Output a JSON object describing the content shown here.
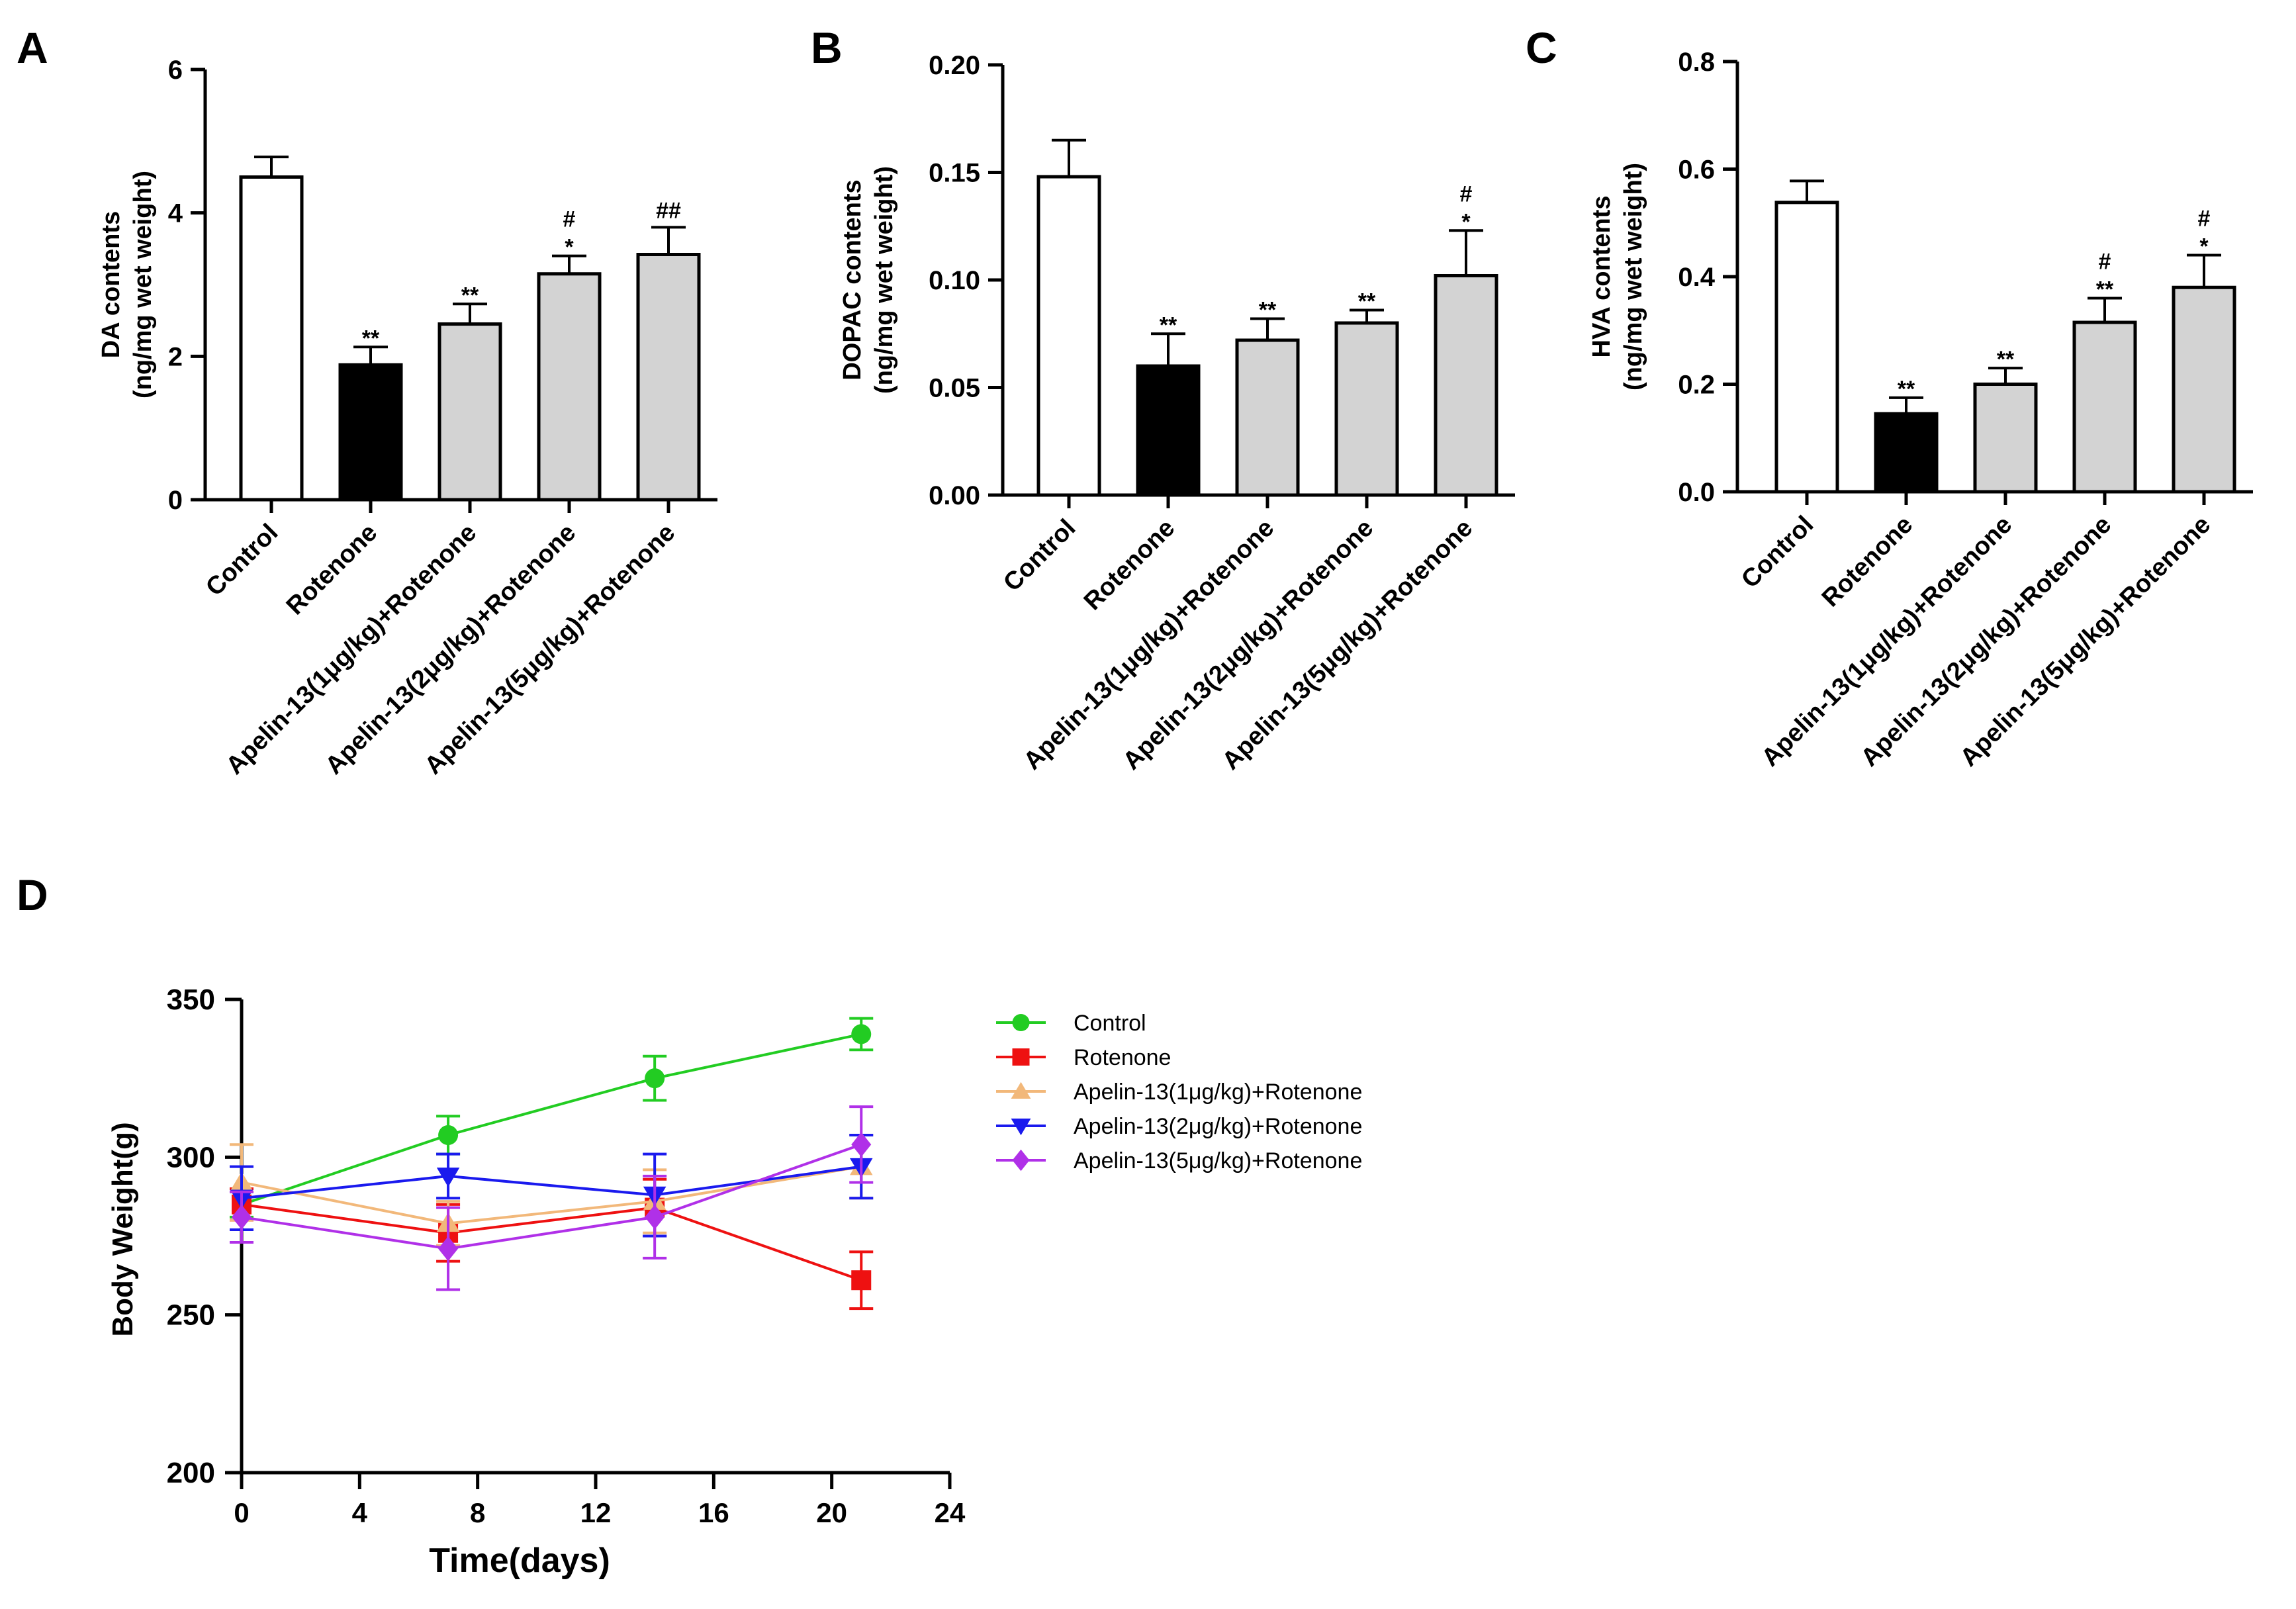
{
  "chart_data": [
    {
      "panel": "A",
      "type": "bar",
      "ylabel_line1": "DA contents",
      "ylabel_line2": "(ng/mg wet weight)",
      "ylim": [
        0,
        6
      ],
      "yticks": [
        0,
        2,
        4,
        6
      ],
      "ytick_labels": [
        "0",
        "2",
        "4",
        "6"
      ],
      "categories": [
        "Control",
        "Rotenone",
        "Apelin-13(1μg/kg)+Rotenone",
        "Apelin-13(2μg/kg)+Rotenone",
        "Apelin-13(5μg/kg)+Rotenone"
      ],
      "values": [
        4.5,
        1.88,
        2.45,
        3.15,
        3.42
      ],
      "errors": [
        0.28,
        0.25,
        0.28,
        0.25,
        0.38
      ],
      "annotations": [
        [],
        [
          "**"
        ],
        [
          "**"
        ],
        [
          "*",
          "#"
        ],
        [
          "##"
        ]
      ]
    },
    {
      "panel": "B",
      "type": "bar",
      "ylabel_line1": "DOPAC contents",
      "ylabel_line2": "(ng/mg wet weight)",
      "ylim": [
        0,
        0.2
      ],
      "yticks": [
        0,
        0.05,
        0.1,
        0.15,
        0.2
      ],
      "ytick_labels": [
        "0.00",
        "0.05",
        "0.10",
        "0.15",
        "0.20"
      ],
      "categories": [
        "Control",
        "Rotenone",
        "Apelin-13(1μg/kg)+Rotenone",
        "Apelin-13(2μg/kg)+Rotenone",
        "Apelin-13(5μg/kg)+Rotenone"
      ],
      "values": [
        0.148,
        0.06,
        0.072,
        0.08,
        0.102
      ],
      "errors": [
        0.017,
        0.015,
        0.01,
        0.006,
        0.021
      ],
      "annotations": [
        [],
        [
          "**"
        ],
        [
          "**"
        ],
        [
          "**"
        ],
        [
          "*",
          "#"
        ]
      ]
    },
    {
      "panel": "C",
      "type": "bar",
      "ylabel_line1": "HVA contents",
      "ylabel_line2": "(ng/mg wet weight)",
      "ylim": [
        0,
        0.8
      ],
      "yticks": [
        0,
        0.2,
        0.4,
        0.6,
        0.8
      ],
      "ytick_labels": [
        "0.0",
        "0.2",
        "0.4",
        "0.6",
        "0.8"
      ],
      "categories": [
        "Control",
        "Rotenone",
        "Apelin-13(1μg/kg)+Rotenone",
        "Apelin-13(2μg/kg)+Rotenone",
        "Apelin-13(5μg/kg)+Rotenone"
      ],
      "values": [
        0.538,
        0.145,
        0.2,
        0.315,
        0.38
      ],
      "errors": [
        0.04,
        0.03,
        0.03,
        0.045,
        0.06
      ],
      "annotations": [
        [],
        [
          "**"
        ],
        [
          "**"
        ],
        [
          "**",
          "#"
        ],
        [
          "*",
          "#"
        ]
      ]
    },
    {
      "panel": "D",
      "type": "line",
      "xlabel": "Time(days)",
      "ylabel": "Body Weight(g)",
      "xlim": [
        0,
        24
      ],
      "xticks": [
        0,
        4,
        8,
        12,
        16,
        20,
        24
      ],
      "ylim": [
        200,
        350
      ],
      "yticks": [
        200,
        250,
        300,
        350
      ],
      "series": [
        {
          "name": "Control",
          "color": "#22cc22",
          "marker": "circle",
          "x": [
            0,
            7,
            14,
            21
          ],
          "values": [
            285,
            307,
            325,
            339
          ],
          "errors": [
            4,
            6,
            7,
            5
          ]
        },
        {
          "name": "Rotenone",
          "color": "#ee1111",
          "marker": "square",
          "x": [
            0,
            7,
            14,
            21
          ],
          "values": [
            285,
            276,
            284,
            261
          ],
          "errors": [
            5,
            9,
            9,
            9
          ]
        },
        {
          "name": "Apelin-13(1μg/kg)+Rotenone",
          "color": "#f2b87a",
          "marker": "triangle-up",
          "x": [
            0,
            7,
            14,
            21
          ],
          "values": [
            292,
            279,
            286,
            297
          ],
          "errors": [
            12,
            7,
            10,
            10
          ]
        },
        {
          "name": "Apelin-13(2μg/kg)+Rotenone",
          "color": "#1a1aee",
          "marker": "triangle-down",
          "x": [
            0,
            7,
            14,
            21
          ],
          "values": [
            287,
            294,
            288,
            297
          ],
          "errors": [
            10,
            7,
            13,
            10
          ]
        },
        {
          "name": "Apelin-13(5μg/kg)+Rotenone",
          "color": "#b030e8",
          "marker": "diamond",
          "x": [
            0,
            7,
            14,
            21
          ],
          "values": [
            281,
            271,
            281,
            304
          ],
          "errors": [
            8,
            13,
            13,
            12
          ]
        }
      ]
    }
  ]
}
